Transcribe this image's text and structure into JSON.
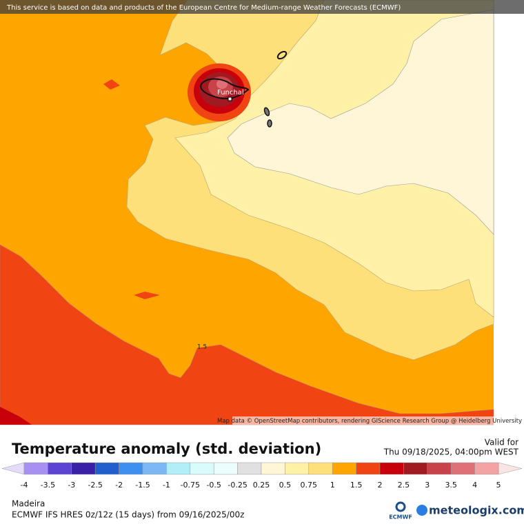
{
  "header": {
    "disclaimer": "This service is based on data and products of the European Centre for Medium-range Weather Forecasts (ECMWF)"
  },
  "map": {
    "attribution": "Map data © OpenStreetMap contributors, rendering GIScience Research Group @ Heidelberg University",
    "place_label": "Funchal",
    "contour_label": "1.5"
  },
  "legend": {
    "title": "Temperature anomaly (std. deviation)",
    "valid_for": "Valid for",
    "valid_time": "Thu 09/18/2025, 04:00pm WEST",
    "ticks": [
      -4,
      -3.5,
      -3,
      -2.5,
      -2,
      -1.5,
      -1,
      -0.75,
      -0.5,
      -0.25,
      0.25,
      0.5,
      0.75,
      1,
      1.5,
      2,
      2.5,
      3,
      3.5,
      4,
      5
    ],
    "colors": [
      "#a890f2",
      "#5d43d2",
      "#3a20a6",
      "#2160cc",
      "#3d90ef",
      "#7cb8f4",
      "#b2eef8",
      "#d8fbfb",
      "#ecfdfd",
      "#e0e0e0",
      "#fff6d8",
      "#fff1a8",
      "#fde07a",
      "#ffa500",
      "#f04512",
      "#c8000c",
      "#a01a22",
      "#c8424a",
      "#e07078",
      "#f3a3a3"
    ],
    "under_color": "#e4dcfa",
    "over_color": "#fbe4e4"
  },
  "footer": {
    "region": "Madeira",
    "model": "ECMWF IFS HRES 0z/12z (15 days) from  09/16/2025/00z",
    "logo_ecmwf": "ECMWF",
    "logo_site": "meteologix.com"
  }
}
